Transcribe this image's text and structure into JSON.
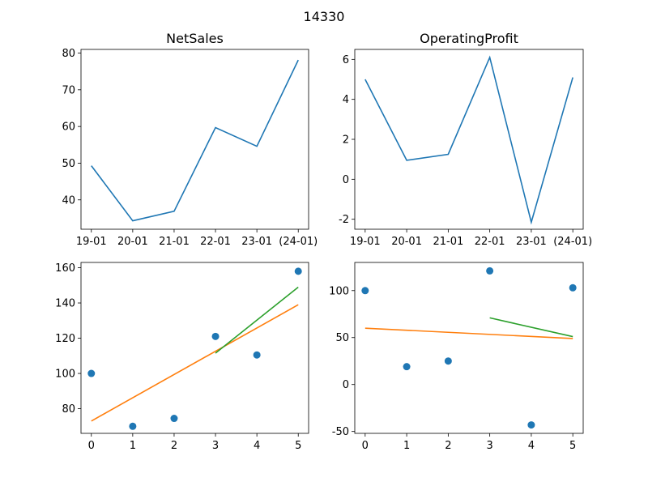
{
  "figure": {
    "suptitle": "14330"
  },
  "chart_data": [
    {
      "type": "line",
      "title": "NetSales",
      "categories": [
        "19-01",
        "20-01",
        "21-01",
        "22-01",
        "23-01",
        "(24-01)"
      ],
      "values": [
        49.3,
        34.3,
        36.9,
        59.7,
        54.6,
        78.1
      ],
      "ylim": [
        32,
        81
      ],
      "yticks": [
        40,
        50,
        60,
        70,
        80
      ],
      "color": "#1f77b4"
    },
    {
      "type": "line",
      "title": "OperatingProfit",
      "categories": [
        "19-01",
        "20-01",
        "21-01",
        "22-01",
        "23-01",
        "(24-01)"
      ],
      "values": [
        5.0,
        0.95,
        1.25,
        6.1,
        -2.15,
        5.1
      ],
      "ylim": [
        -2.5,
        6.5
      ],
      "yticks": [
        -2,
        0,
        2,
        4,
        6
      ],
      "color": "#1f77b4"
    },
    {
      "type": "scatter",
      "title": "",
      "x": [
        0,
        1,
        2,
        3,
        4,
        5
      ],
      "y": [
        100,
        70,
        74.5,
        121,
        110.5,
        158
      ],
      "xlim": [
        -0.25,
        5.25
      ],
      "ylim": [
        66,
        163
      ],
      "xticks": [
        0,
        1,
        2,
        3,
        4,
        5
      ],
      "yticks": [
        80,
        100,
        120,
        140,
        160
      ],
      "point_color": "#1f77b4",
      "lines": [
        {
          "x": [
            0,
            5
          ],
          "y": [
            73,
            139
          ],
          "color": "#ff7f0e"
        },
        {
          "x": [
            3,
            5
          ],
          "y": [
            111.5,
            149
          ],
          "color": "#2ca02c"
        }
      ]
    },
    {
      "type": "scatter",
      "title": "",
      "x": [
        0,
        1,
        2,
        3,
        4,
        5
      ],
      "y": [
        100,
        19,
        25,
        121,
        -43,
        103
      ],
      "xlim": [
        -0.25,
        5.25
      ],
      "ylim": [
        -52,
        130
      ],
      "xticks": [
        0,
        1,
        2,
        3,
        4,
        5
      ],
      "yticks": [
        -50,
        0,
        50,
        100
      ],
      "point_color": "#1f77b4",
      "lines": [
        {
          "x": [
            0,
            5
          ],
          "y": [
            60,
            49
          ],
          "color": "#ff7f0e"
        },
        {
          "x": [
            3,
            5
          ],
          "y": [
            71,
            51
          ],
          "color": "#2ca02c"
        }
      ]
    }
  ]
}
